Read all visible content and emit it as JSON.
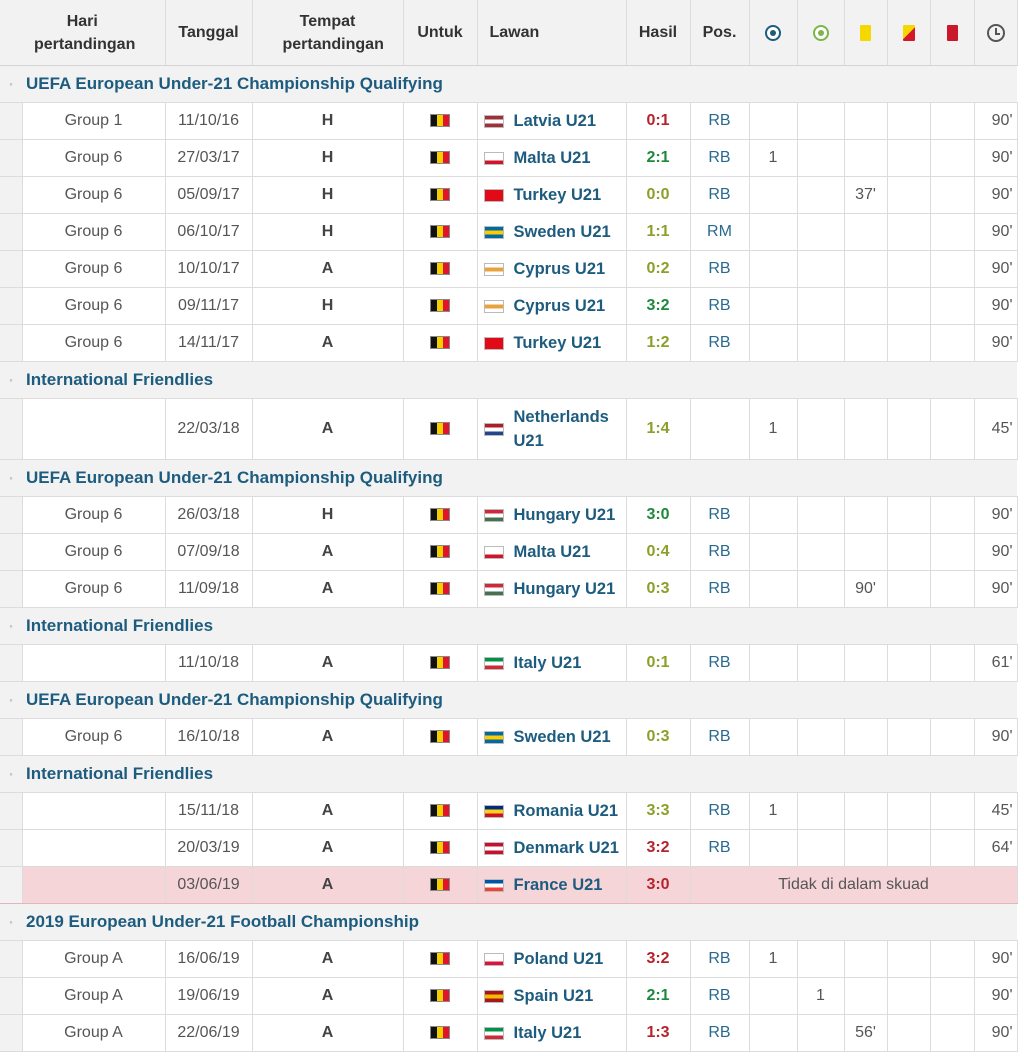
{
  "header": {
    "matchday": "Hari pertandingan",
    "date": "Tanggal",
    "venue": "Tempat pertandingan",
    "for": "Untuk",
    "opponent": "Lawan",
    "result": "Hasil",
    "position": "Pos.",
    "icons": [
      "goal-icon",
      "assist-icon",
      "yellow-card-icon",
      "second-yellow-card-icon",
      "red-card-icon",
      "clock-icon"
    ]
  },
  "sections": [
    {
      "title": "UEFA European Under-21 Championship Qualifying",
      "matches": [
        {
          "matchday": "Group 1",
          "date": "11/10/16",
          "venue": "H",
          "opponent": "Latvia U21",
          "opp_flag": [
            "#9e3039",
            "#ffffff",
            "#9e3039"
          ],
          "result": "0:1",
          "outcome": "loss",
          "pos": "RB",
          "goals": "",
          "assists": "",
          "yellow": "",
          "yr": "",
          "red": "",
          "minutes": "90'"
        },
        {
          "matchday": "Group 6",
          "date": "27/03/17",
          "venue": "H",
          "opponent": "Malta U21",
          "opp_flag": [
            "#ffffff",
            "#ffffff",
            "#cf142b"
          ],
          "result": "2:1",
          "outcome": "win",
          "pos": "RB",
          "goals": "1",
          "assists": "",
          "yellow": "",
          "yr": "",
          "red": "",
          "minutes": "90'"
        },
        {
          "matchday": "Group 6",
          "date": "05/09/17",
          "venue": "H",
          "opponent": "Turkey U21",
          "opp_flag": [
            "#e30a17",
            "#e30a17",
            "#e30a17"
          ],
          "result": "0:0",
          "outcome": "draw",
          "pos": "RB",
          "goals": "",
          "assists": "",
          "yellow": "37'",
          "yr": "",
          "red": "",
          "minutes": "90'"
        },
        {
          "matchday": "Group 6",
          "date": "06/10/17",
          "venue": "H",
          "opponent": "Sweden U21",
          "opp_flag": [
            "#006aa7",
            "#fecc00",
            "#006aa7"
          ],
          "result": "1:1",
          "outcome": "draw",
          "pos": "RM",
          "goals": "",
          "assists": "",
          "yellow": "",
          "yr": "",
          "red": "",
          "minutes": "90'"
        },
        {
          "matchday": "Group 6",
          "date": "10/10/17",
          "venue": "A",
          "opponent": "Cyprus U21",
          "opp_flag": [
            "#ffffff",
            "#e8a33d",
            "#ffffff"
          ],
          "result": "0:2",
          "outcome": "draw",
          "pos": "RB",
          "goals": "",
          "assists": "",
          "yellow": "",
          "yr": "",
          "red": "",
          "minutes": "90'"
        },
        {
          "matchday": "Group 6",
          "date": "09/11/17",
          "venue": "H",
          "opponent": "Cyprus U21",
          "opp_flag": [
            "#ffffff",
            "#e8a33d",
            "#ffffff"
          ],
          "result": "3:2",
          "outcome": "win",
          "pos": "RB",
          "goals": "",
          "assists": "",
          "yellow": "",
          "yr": "",
          "red": "",
          "minutes": "90'"
        },
        {
          "matchday": "Group 6",
          "date": "14/11/17",
          "venue": "A",
          "opponent": "Turkey U21",
          "opp_flag": [
            "#e30a17",
            "#e30a17",
            "#e30a17"
          ],
          "result": "1:2",
          "outcome": "draw",
          "pos": "RB",
          "goals": "",
          "assists": "",
          "yellow": "",
          "yr": "",
          "red": "",
          "minutes": "90'"
        }
      ]
    },
    {
      "title": "International Friendlies",
      "matches": [
        {
          "matchday": "",
          "date": "22/03/18",
          "venue": "A",
          "opponent": "Netherlands U21",
          "opp_flag": [
            "#ae1c28",
            "#ffffff",
            "#21468b"
          ],
          "result": "1:4",
          "outcome": "draw",
          "pos": "",
          "goals": "1",
          "assists": "",
          "yellow": "",
          "yr": "",
          "red": "",
          "minutes": "45'",
          "tall": true
        }
      ]
    },
    {
      "title": "UEFA European Under-21 Championship Qualifying",
      "matches": [
        {
          "matchday": "Group 6",
          "date": "26/03/18",
          "venue": "H",
          "opponent": "Hungary U21",
          "opp_flag": [
            "#ce2939",
            "#ffffff",
            "#477050"
          ],
          "result": "3:0",
          "outcome": "win",
          "pos": "RB",
          "goals": "",
          "assists": "",
          "yellow": "",
          "yr": "",
          "red": "",
          "minutes": "90'"
        },
        {
          "matchday": "Group 6",
          "date": "07/09/18",
          "venue": "A",
          "opponent": "Malta U21",
          "opp_flag": [
            "#ffffff",
            "#ffffff",
            "#cf142b"
          ],
          "result": "0:4",
          "outcome": "draw",
          "pos": "RB",
          "goals": "",
          "assists": "",
          "yellow": "",
          "yr": "",
          "red": "",
          "minutes": "90'"
        },
        {
          "matchday": "Group 6",
          "date": "11/09/18",
          "venue": "A",
          "opponent": "Hungary U21",
          "opp_flag": [
            "#ce2939",
            "#ffffff",
            "#477050"
          ],
          "result": "0:3",
          "outcome": "draw",
          "pos": "RB",
          "goals": "",
          "assists": "",
          "yellow": "90'",
          "yr": "",
          "red": "",
          "minutes": "90'"
        }
      ]
    },
    {
      "title": "International Friendlies",
      "matches": [
        {
          "matchday": "",
          "date": "11/10/18",
          "venue": "A",
          "opponent": "Italy U21",
          "opp_flag": [
            "#009246",
            "#ffffff",
            "#ce2b37"
          ],
          "result": "0:1",
          "outcome": "draw",
          "pos": "RB",
          "goals": "",
          "assists": "",
          "yellow": "",
          "yr": "",
          "red": "",
          "minutes": "61'"
        }
      ]
    },
    {
      "title": "UEFA European Under-21 Championship Qualifying",
      "matches": [
        {
          "matchday": "Group 6",
          "date": "16/10/18",
          "venue": "A",
          "opponent": "Sweden U21",
          "opp_flag": [
            "#006aa7",
            "#fecc00",
            "#006aa7"
          ],
          "result": "0:3",
          "outcome": "draw",
          "pos": "RB",
          "goals": "",
          "assists": "",
          "yellow": "",
          "yr": "",
          "red": "",
          "minutes": "90'"
        }
      ]
    },
    {
      "title": "International Friendlies",
      "matches": [
        {
          "matchday": "",
          "date": "15/11/18",
          "venue": "A",
          "opponent": "Romania U21",
          "opp_flag": [
            "#002b7f",
            "#fcd116",
            "#ce1126"
          ],
          "result": "3:3",
          "outcome": "draw",
          "pos": "RB",
          "goals": "1",
          "assists": "",
          "yellow": "",
          "yr": "",
          "red": "",
          "minutes": "45'"
        },
        {
          "matchday": "",
          "date": "20/03/19",
          "venue": "A",
          "opponent": "Denmark U21",
          "opp_flag": [
            "#c8102e",
            "#ffffff",
            "#c8102e"
          ],
          "result": "3:2",
          "outcome": "loss",
          "pos": "RB",
          "goals": "",
          "assists": "",
          "yellow": "",
          "yr": "",
          "red": "",
          "minutes": "64'"
        },
        {
          "matchday": "",
          "date": "03/06/19",
          "venue": "A",
          "opponent": "France U21",
          "opp_flag": [
            "#0055a4",
            "#ffffff",
            "#ef4135"
          ],
          "result": "3:0",
          "outcome": "loss",
          "not_in_squad": "Tidak di dalam skuad"
        }
      ]
    },
    {
      "title": "2019 European Under-21 Football Championship",
      "matches": [
        {
          "matchday": "Group A",
          "date": "16/06/19",
          "venue": "A",
          "opponent": "Poland U21",
          "opp_flag": [
            "#ffffff",
            "#ffffff",
            "#dc143c"
          ],
          "result": "3:2",
          "outcome": "loss",
          "pos": "RB",
          "goals": "1",
          "assists": "",
          "yellow": "",
          "yr": "",
          "red": "",
          "minutes": "90'"
        },
        {
          "matchday": "Group A",
          "date": "19/06/19",
          "venue": "A",
          "opponent": "Spain U21",
          "opp_flag": [
            "#aa151b",
            "#f1bf00",
            "#aa151b"
          ],
          "result": "2:1",
          "outcome": "win",
          "pos": "RB",
          "goals": "",
          "assists": "1",
          "yellow": "",
          "yr": "",
          "red": "",
          "minutes": "90'"
        },
        {
          "matchday": "Group A",
          "date": "22/06/19",
          "venue": "A",
          "opponent": "Italy U21",
          "opp_flag": [
            "#009246",
            "#ffffff",
            "#ce2b37"
          ],
          "result": "1:3",
          "outcome": "loss",
          "pos": "RB",
          "goals": "",
          "assists": "",
          "yellow": "56'",
          "yr": "",
          "red": "",
          "minutes": "90'"
        }
      ]
    }
  ]
}
